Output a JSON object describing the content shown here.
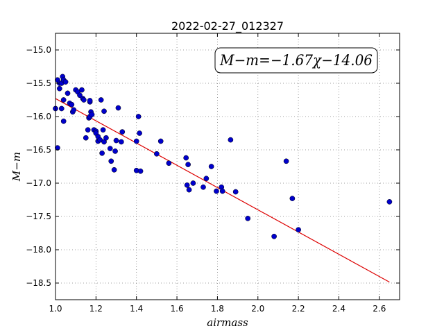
{
  "chart_data": {
    "type": "scatter",
    "title": "2022-02-27_012327",
    "xlabel": "airmass",
    "ylabel": "M−m",
    "annotation": "M−m=−1.67χ−14.06",
    "xlim": [
      1.0,
      2.7
    ],
    "ylim": [
      -18.75,
      -14.75
    ],
    "xticks": [
      1.0,
      1.2,
      1.4,
      1.6,
      1.8,
      2.0,
      2.2,
      2.4,
      2.6
    ],
    "xtick_labels": [
      "1.0",
      "1.2",
      "1.4",
      "1.6",
      "1.8",
      "2.0",
      "2.2",
      "2.4",
      "2.6"
    ],
    "yticks": [
      -15.0,
      -15.5,
      -16.0,
      -16.5,
      -17.0,
      -17.5,
      -18.0,
      -18.5
    ],
    "ytick_labels": [
      "−15.0",
      "−15.5",
      "−16.0",
      "−16.5",
      "−17.0",
      "−17.5",
      "−18.0",
      "−18.5"
    ],
    "grid": true,
    "point_color": "#0000cc",
    "line_color": "#dd0000",
    "fit": {
      "slope": -1.67,
      "intercept": -14.06,
      "x_range": [
        1.0,
        2.65
      ]
    },
    "points": [
      [
        1.0,
        -15.88
      ],
      [
        1.01,
        -15.45
      ],
      [
        1.01,
        -16.47
      ],
      [
        1.02,
        -15.58
      ],
      [
        1.02,
        -15.5
      ],
      [
        1.03,
        -15.5
      ],
      [
        1.03,
        -15.88
      ],
      [
        1.035,
        -15.4
      ],
      [
        1.04,
        -15.45
      ],
      [
        1.04,
        -15.75
      ],
      [
        1.04,
        -16.07
      ],
      [
        1.05,
        -15.48
      ],
      [
        1.06,
        -15.65
      ],
      [
        1.07,
        -15.8
      ],
      [
        1.08,
        -15.82
      ],
      [
        1.085,
        -15.93
      ],
      [
        1.09,
        -15.9
      ],
      [
        1.1,
        -15.6
      ],
      [
        1.11,
        -15.63
      ],
      [
        1.12,
        -15.68
      ],
      [
        1.13,
        -15.6
      ],
      [
        1.135,
        -15.73
      ],
      [
        1.14,
        -15.75
      ],
      [
        1.15,
        -16.32
      ],
      [
        1.16,
        -16.2
      ],
      [
        1.165,
        -16.02
      ],
      [
        1.17,
        -15.78
      ],
      [
        1.17,
        -16.0
      ],
      [
        1.17,
        -15.76
      ],
      [
        1.175,
        -15.93
      ],
      [
        1.18,
        -15.97
      ],
      [
        1.19,
        -16.2
      ],
      [
        1.2,
        -16.22
      ],
      [
        1.2,
        -16.25
      ],
      [
        1.21,
        -16.37
      ],
      [
        1.21,
        -16.3
      ],
      [
        1.22,
        -16.35
      ],
      [
        1.225,
        -15.75
      ],
      [
        1.23,
        -16.55
      ],
      [
        1.235,
        -16.2
      ],
      [
        1.24,
        -16.38
      ],
      [
        1.24,
        -15.92
      ],
      [
        1.25,
        -16.32
      ],
      [
        1.27,
        -16.48
      ],
      [
        1.275,
        -16.67
      ],
      [
        1.29,
        -16.8
      ],
      [
        1.295,
        -16.52
      ],
      [
        1.3,
        -16.36
      ],
      [
        1.31,
        -15.87
      ],
      [
        1.325,
        -16.38
      ],
      [
        1.33,
        -16.23
      ],
      [
        1.4,
        -16.37
      ],
      [
        1.4,
        -16.81
      ],
      [
        1.41,
        -16.0
      ],
      [
        1.415,
        -16.25
      ],
      [
        1.42,
        -16.82
      ],
      [
        1.5,
        -16.56
      ],
      [
        1.52,
        -16.37
      ],
      [
        1.56,
        -16.7
      ],
      [
        1.645,
        -16.62
      ],
      [
        1.65,
        -17.03
      ],
      [
        1.655,
        -16.72
      ],
      [
        1.66,
        -17.1
      ],
      [
        1.68,
        -17.0
      ],
      [
        1.73,
        -17.06
      ],
      [
        1.745,
        -16.93
      ],
      [
        1.77,
        -16.75
      ],
      [
        1.795,
        -17.12
      ],
      [
        1.82,
        -17.06
      ],
      [
        1.825,
        -17.12
      ],
      [
        1.865,
        -16.35
      ],
      [
        1.89,
        -17.13
      ],
      [
        1.95,
        -17.53
      ],
      [
        2.08,
        -17.8
      ],
      [
        2.14,
        -16.67
      ],
      [
        2.17,
        -17.23
      ],
      [
        2.2,
        -17.7
      ],
      [
        2.65,
        -17.28
      ]
    ]
  }
}
